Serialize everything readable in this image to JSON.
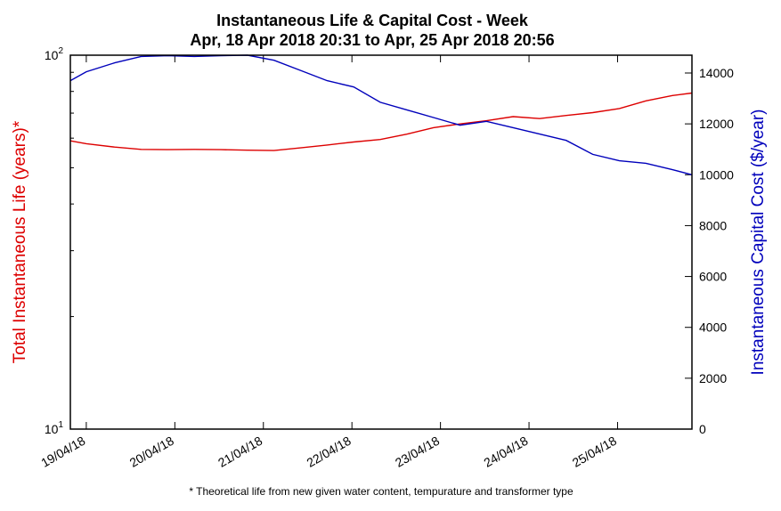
{
  "chart_data": {
    "type": "line",
    "title": "Instantaneous Life & Capital Cost - Week",
    "subtitle": "Apr, 18 Apr 2018 20:31 to Apr, 25 Apr 2018 20:56",
    "footnote": "* Theoretical life from new given water content, tempurature and transformer type",
    "x_ticks": [
      "19/04/18",
      "20/04/18",
      "21/04/18",
      "22/04/18",
      "23/04/18",
      "24/04/18",
      "25/04/18"
    ],
    "x_range": [
      "18/04/18 20:31",
      "25/04/18 20:56"
    ],
    "left_axis": {
      "label": "Total Instantaneous Life (years)*",
      "scale": "log",
      "range": [
        10,
        100
      ],
      "tick_labels": [
        {
          "value": 10,
          "base": "10",
          "exp": "1"
        },
        {
          "value": 100,
          "base": "10",
          "exp": "2"
        }
      ],
      "color": "#dd0000"
    },
    "right_axis": {
      "label": "Instantaneous Capital Cost ($/year)",
      "scale": "linear",
      "range": [
        0,
        14700
      ],
      "ticks": [
        "0",
        "2000",
        "4000",
        "6000",
        "8000",
        "10000",
        "12000",
        "14000"
      ],
      "color": "#0000bb"
    },
    "series": [
      {
        "axis": "left",
        "color": "#dd0000",
        "x_days": [
          0,
          0.18,
          0.5,
          0.8,
          1.1,
          1.4,
          1.7,
          2.0,
          2.3,
          2.6,
          2.9,
          3.2,
          3.5,
          3.8,
          4.1,
          4.4,
          4.7,
          5.0,
          5.3,
          5.6,
          5.9,
          6.2,
          6.5,
          6.8,
          7.02
        ],
        "values": [
          59,
          58,
          56.8,
          56,
          55.9,
          56,
          55.9,
          55.7,
          55.6,
          56.5,
          57.5,
          58.6,
          59.5,
          61.5,
          64,
          65.5,
          66.8,
          68.5,
          67.7,
          69,
          70.2,
          72,
          75.5,
          78,
          79.2
        ]
      },
      {
        "axis": "right",
        "color": "#0000bb",
        "x_days": [
          0,
          0.18,
          0.5,
          0.8,
          1.1,
          1.4,
          1.7,
          2.0,
          2.3,
          2.6,
          2.9,
          3.2,
          3.5,
          3.8,
          4.1,
          4.4,
          4.7,
          5.0,
          5.3,
          5.6,
          5.9,
          6.2,
          6.5,
          6.8,
          7.02
        ],
        "values": [
          13700,
          14050,
          14400,
          14650,
          14680,
          14650,
          14680,
          14700,
          14500,
          14100,
          13700,
          13450,
          12850,
          12550,
          12250,
          11950,
          12100,
          11850,
          11600,
          11350,
          10800,
          10550,
          10450,
          10200,
          10000
        ]
      }
    ]
  }
}
